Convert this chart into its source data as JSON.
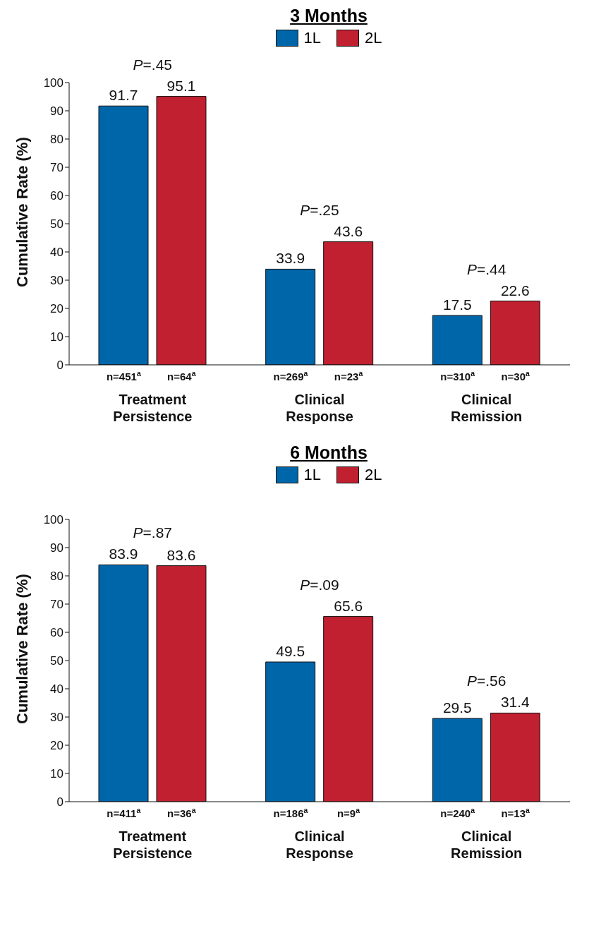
{
  "chart_data": [
    {
      "type": "bar",
      "title": "3 Months",
      "ylabel": "Cumulative Rate (%)",
      "categories": [
        "Treatment Persistence",
        "Clinical Response",
        "Clinical Remission"
      ],
      "series": [
        {
          "name": "1L",
          "color": "#0066aa",
          "values": [
            91.7,
            33.9,
            17.5
          ]
        },
        {
          "name": "2L",
          "color": "#c0202f",
          "values": [
            95.1,
            43.6,
            22.6
          ]
        }
      ],
      "ylim": [
        0,
        100
      ],
      "yticks": [
        0,
        10,
        20,
        30,
        40,
        50,
        60,
        70,
        80,
        90,
        100
      ],
      "grid": false,
      "legend": "top",
      "data_labels": true,
      "annotations": [
        "P=.45",
        "n=451$^{a}$",
        "n=64$^{a}$",
        "P=.25",
        "n=269$^{a}$",
        "n=23$^{a}$",
        "P=.44",
        "n=310$^{a}$",
        "n=30$^{a}$"
      ]
    },
    {
      "type": "bar",
      "title": "6 Months",
      "ylabel": "Cumulative Rate (%)",
      "categories": [
        "Treatment Persistence",
        "Clinical Response",
        "Clinical Remission"
      ],
      "series": [
        {
          "name": "1L",
          "color": "#0066aa",
          "values": [
            83.9,
            49.5,
            29.5
          ]
        },
        {
          "name": "2L",
          "color": "#c0202f",
          "values": [
            83.6,
            65.6,
            31.4
          ]
        }
      ],
      "ylim": [
        0,
        100
      ],
      "yticks": [
        0,
        10,
        20,
        30,
        40,
        50,
        60,
        70,
        80,
        90,
        100
      ],
      "grid": false,
      "legend": "top",
      "data_labels": true,
      "annotations": [
        "P=.87",
        "n=411$^{a}$",
        "n=36$^{a}$",
        "P=.09",
        "n=186$^{a}$",
        "n=9$^{a}$",
        "P=.56",
        "n=240$^{a}$",
        "n=13$^{a}$"
      ]
    }
  ]
}
